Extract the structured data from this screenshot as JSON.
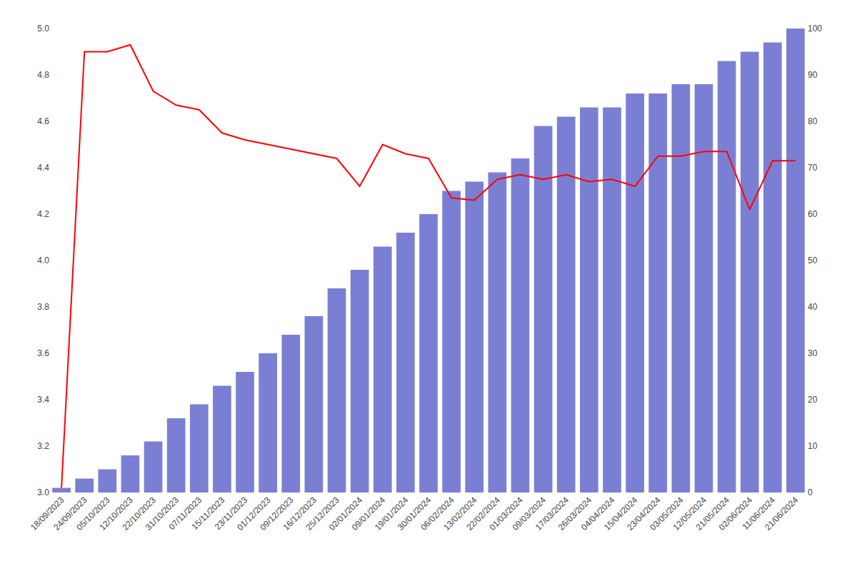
{
  "chart_data": {
    "type": "bar",
    "categories": [
      "18/09/2023",
      "24/09/2023",
      "05/10/2023",
      "12/10/2023",
      "22/10/2023",
      "31/10/2023",
      "07/11/2023",
      "15/11/2023",
      "23/11/2023",
      "01/12/2023",
      "09/12/2023",
      "16/12/2023",
      "25/12/2023",
      "02/01/2024",
      "09/01/2024",
      "19/01/2024",
      "30/01/2024",
      "06/02/2024",
      "13/02/2024",
      "22/02/2024",
      "01/03/2024",
      "09/03/2024",
      "17/03/2024",
      "26/03/2024",
      "04/04/2024",
      "15/04/2024",
      "23/04/2024",
      "03/05/2024",
      "12/05/2024",
      "21/05/2024",
      "02/06/2024",
      "11/06/2024",
      "21/06/2024"
    ],
    "series": [
      {
        "type": "bar",
        "color": "#7b7fd4",
        "axis": "y2",
        "values": [
          1,
          3,
          5,
          8,
          11,
          16,
          19,
          23,
          26,
          30,
          34,
          38,
          44,
          48,
          53,
          56,
          60,
          65,
          67,
          69,
          72,
          79,
          81,
          83,
          83,
          86,
          86,
          88,
          88,
          93,
          95,
          97,
          100
        ]
      },
      {
        "type": "line",
        "color": "#ff0000",
        "values": [
          3.02,
          4.9,
          4.9,
          4.93,
          4.73,
          4.67,
          4.65,
          4.55,
          4.52,
          4.5,
          4.48,
          4.46,
          4.44,
          4.32,
          4.5,
          4.46,
          4.44,
          4.27,
          4.26,
          4.35,
          4.37,
          4.35,
          4.37,
          4.34,
          4.35,
          4.32,
          4.45,
          4.45,
          4.47,
          4.47,
          4.22,
          4.43,
          4.43
        ]
      }
    ],
    "ylim": [
      3.0,
      5.0
    ],
    "yticks": [
      {
        "value": 3.0,
        "label": "3.0"
      },
      3.2,
      3.4,
      3.6,
      3.8,
      {
        "value": 4.0,
        "label": "4.0"
      },
      4.2,
      4.4,
      4.6,
      4.8,
      {
        "value": 5.0,
        "label": "5.0"
      }
    ],
    "y2lim": [
      0,
      100
    ],
    "y2ticks": [
      0,
      10,
      20,
      30,
      40,
      50,
      60,
      70,
      80,
      90,
      100
    ],
    "grid": false
  }
}
